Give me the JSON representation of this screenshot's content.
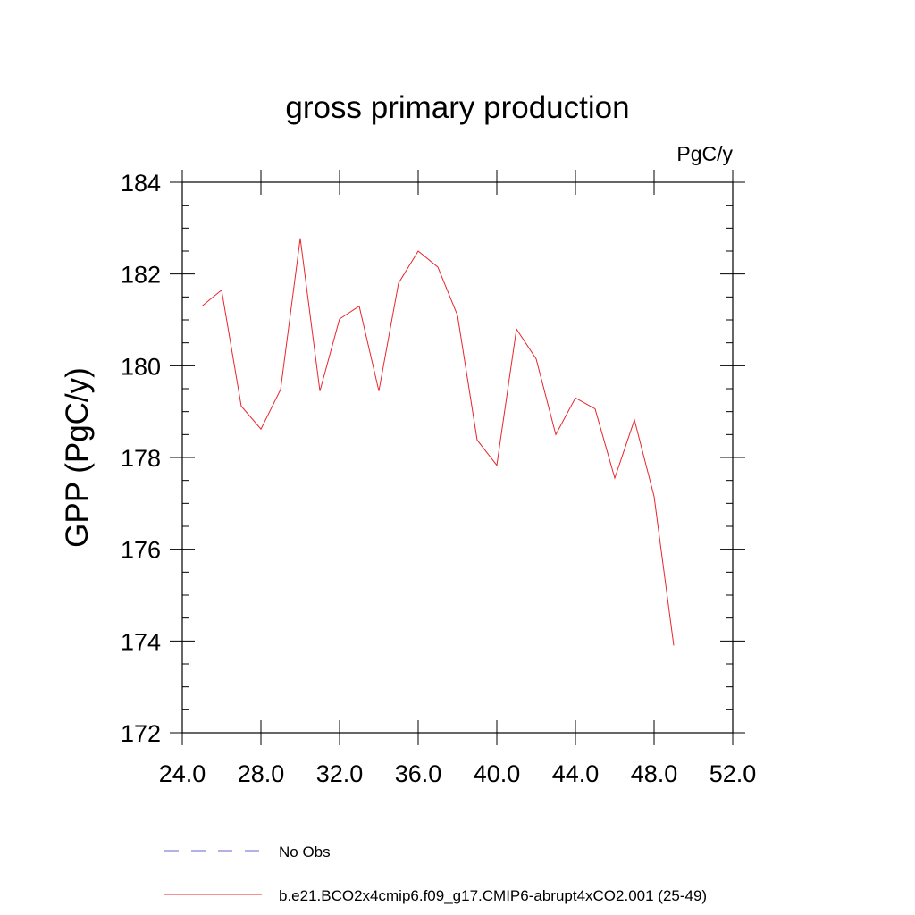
{
  "chart_data": {
    "type": "line",
    "title": "gross primary production",
    "units_label": "PgC/y",
    "ylabel": "GPP  (PgC/y)",
    "xlabel": "",
    "xlim": [
      24,
      52
    ],
    "ylim": [
      172,
      184
    ],
    "x_ticks": [
      24,
      28,
      32,
      36,
      40,
      44,
      48,
      52
    ],
    "x_tick_labels": [
      "24.0",
      "28.0",
      "32.0",
      "36.0",
      "40.0",
      "44.0",
      "48.0",
      "52.0"
    ],
    "y_ticks": [
      172,
      174,
      176,
      178,
      180,
      182,
      184
    ],
    "y_tick_labels": [
      "172",
      "174",
      "176",
      "178",
      "180",
      "182",
      "184"
    ],
    "grid": false,
    "legend_position": "bottom",
    "series": [
      {
        "name": "b.e21.BCO2x4cmip6.f09_g17.CMIP6-abrupt4xCO2.001 (25-49)",
        "color": "#e8252b",
        "x": [
          25,
          26,
          27,
          28,
          29,
          30,
          31,
          32,
          33,
          34,
          35,
          36,
          37,
          38,
          39,
          40,
          41,
          42,
          43,
          44,
          45,
          46,
          47,
          48,
          49
        ],
        "y": [
          181.3,
          181.65,
          179.12,
          178.62,
          179.48,
          182.78,
          179.45,
          181.02,
          181.3,
          179.45,
          181.8,
          182.5,
          182.15,
          181.1,
          178.38,
          177.83,
          180.8,
          180.15,
          178.5,
          179.3,
          179.06,
          177.55,
          178.82,
          177.15,
          173.9
        ]
      }
    ],
    "legend": [
      {
        "label": "No Obs",
        "color": "#6666cc",
        "style": "dashed"
      },
      {
        "label": "b.e21.BCO2x4cmip6.f09_g17.CMIP6-abrupt4xCO2.001 (25-49)",
        "color": "#e8252b",
        "style": "solid"
      }
    ]
  }
}
